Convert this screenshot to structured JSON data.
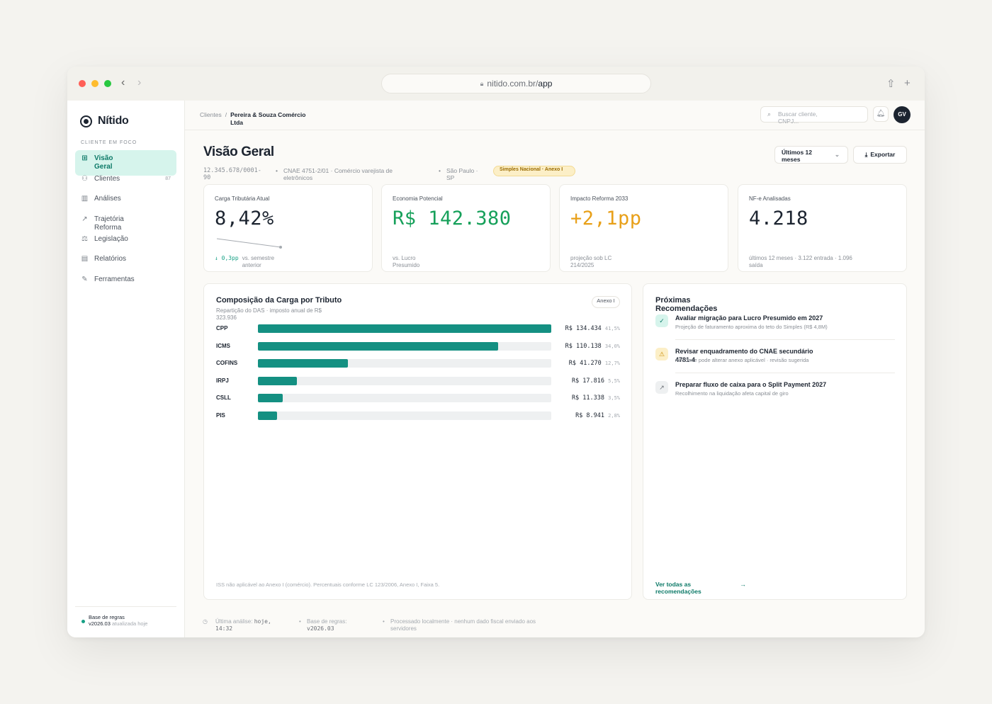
{
  "browser": {
    "url_host": "nitido.com.br/",
    "url_path": "app",
    "back_icon": "‹",
    "forward_icon": "›",
    "share_icon": "⇧",
    "new_tab_icon": "+"
  },
  "sidebar": {
    "brand": "Nítido",
    "section_label": "CLIENTE EM FOCO",
    "items": [
      {
        "label": "Visão Geral",
        "icon": "⊞",
        "active": true,
        "count": ""
      },
      {
        "label": "Clientes",
        "icon": "⚇",
        "active": false,
        "count": "87"
      },
      {
        "label": "Análises",
        "icon": "▥",
        "active": false,
        "count": ""
      },
      {
        "label": "Trajetória Reforma",
        "icon": "↗",
        "active": false,
        "count": ""
      },
      {
        "label": "Legislação",
        "icon": "⚖",
        "active": false,
        "count": ""
      },
      {
        "label": "Relatórios",
        "icon": "▤",
        "active": false,
        "count": ""
      },
      {
        "label": "Ferramentas",
        "icon": "✎",
        "active": false,
        "count": ""
      }
    ],
    "rules_title": "Base de regras",
    "rules_version": "v2026.03",
    "rules_updated": "atualizada hoje"
  },
  "topbar": {
    "crumb_root": "Clientes",
    "crumb_sep": "/",
    "crumb_current": "Pereira & Souza Comércio Ltda",
    "search_placeholder": "Buscar cliente, CNPJ...",
    "search_icon": "⌕",
    "bell_icon": "♫",
    "avatar": "GV"
  },
  "header": {
    "title": "Visão Geral",
    "cnpj": "12.345.678/0001-90",
    "cnae": "CNAE 4751-2/01 · Comércio varejista de eletrônicos",
    "location": "São Paulo · SP",
    "regime": "Simples Nacional · Anexo I",
    "period_label": "Últimos 12 meses",
    "period_caret": "⌄",
    "export_label": "Exportar",
    "export_icon": "⤓"
  },
  "kpis": [
    {
      "label": "Carga Tributária Atual",
      "value": "8,42%",
      "color": "#1c2430",
      "delta": "↓ 0,3pp",
      "foot": "vs. semestre anterior"
    },
    {
      "label": "Economia Potencial",
      "value": "R$ 142.380",
      "color": "#16a05a",
      "delta": "",
      "foot": "vs. Lucro Presumido"
    },
    {
      "label": "Impacto Reforma 2033",
      "value": "+2,1pp",
      "color": "#e8a019",
      "delta": "",
      "foot": "projeção sob LC 214/2025"
    },
    {
      "label": "NF-e Analisadas",
      "value": "4.218",
      "color": "#1c2430",
      "delta": "",
      "foot": "últimos 12 meses · 3.122 entrada · 1.096 saída"
    }
  ],
  "composition": {
    "title": "Composição da Carga por Tributo",
    "subtitle": "Repartição do DAS · imposto anual de R$ 323.936",
    "annex": "Anexo I",
    "note": "ISS não aplicável ao Anexo I (comércio). Percentuais conforme LC 123/2006, Anexo I, Faixa 5.",
    "bars": [
      {
        "name": "CPP",
        "amount": "R$ 134.434",
        "pct": "41,5%",
        "share": 1.0
      },
      {
        "name": "ICMS",
        "amount": "R$ 110.138",
        "pct": "34,0%",
        "share": 0.819
      },
      {
        "name": "COFINS",
        "amount": "R$ 41.270",
        "pct": "12,7%",
        "share": 0.307
      },
      {
        "name": "IRPJ",
        "amount": "R$ 17.816",
        "pct": "5,5%",
        "share": 0.133
      },
      {
        "name": "CSLL",
        "amount": "R$ 11.338",
        "pct": "3,5%",
        "share": 0.084
      },
      {
        "name": "PIS",
        "amount": "R$ 8.941",
        "pct": "2,8%",
        "share": 0.066
      }
    ]
  },
  "recommendations": {
    "title": "Próximas Recomendações",
    "items": [
      {
        "title": "Avaliar migração para Lucro Presumido em 2027",
        "desc": "Projeção de faturamento aproxima do teto do Simples (R$ 4,8M)",
        "icon": "✓",
        "bg": "#d6f4ec",
        "fg": "#0d7a68"
      },
      {
        "title": "Revisar enquadramento do CNAE secundário 4781-4",
        "desc": "Atividade pode alterar anexo aplicável · revisão sugerida",
        "icon": "⚠",
        "bg": "#fcefc7",
        "fg": "#c98a00"
      },
      {
        "title": "Preparar fluxo de caixa para o Split Payment 2027",
        "desc": "Recolhimento na liquidação afeta capital de giro",
        "icon": "↗",
        "bg": "#eef0f1",
        "fg": "#6b6f76"
      }
    ],
    "see_all": "Ver todas as recomendações",
    "see_all_icon": "→"
  },
  "footer": {
    "clock_icon": "◷",
    "last_label": "Última análise:",
    "last_value": "hoje, 14:32",
    "base_label": "Base de regras:",
    "base_value": "v2026.03",
    "local": "Processado localmente · nenhum dado fiscal enviado aos servidores"
  }
}
